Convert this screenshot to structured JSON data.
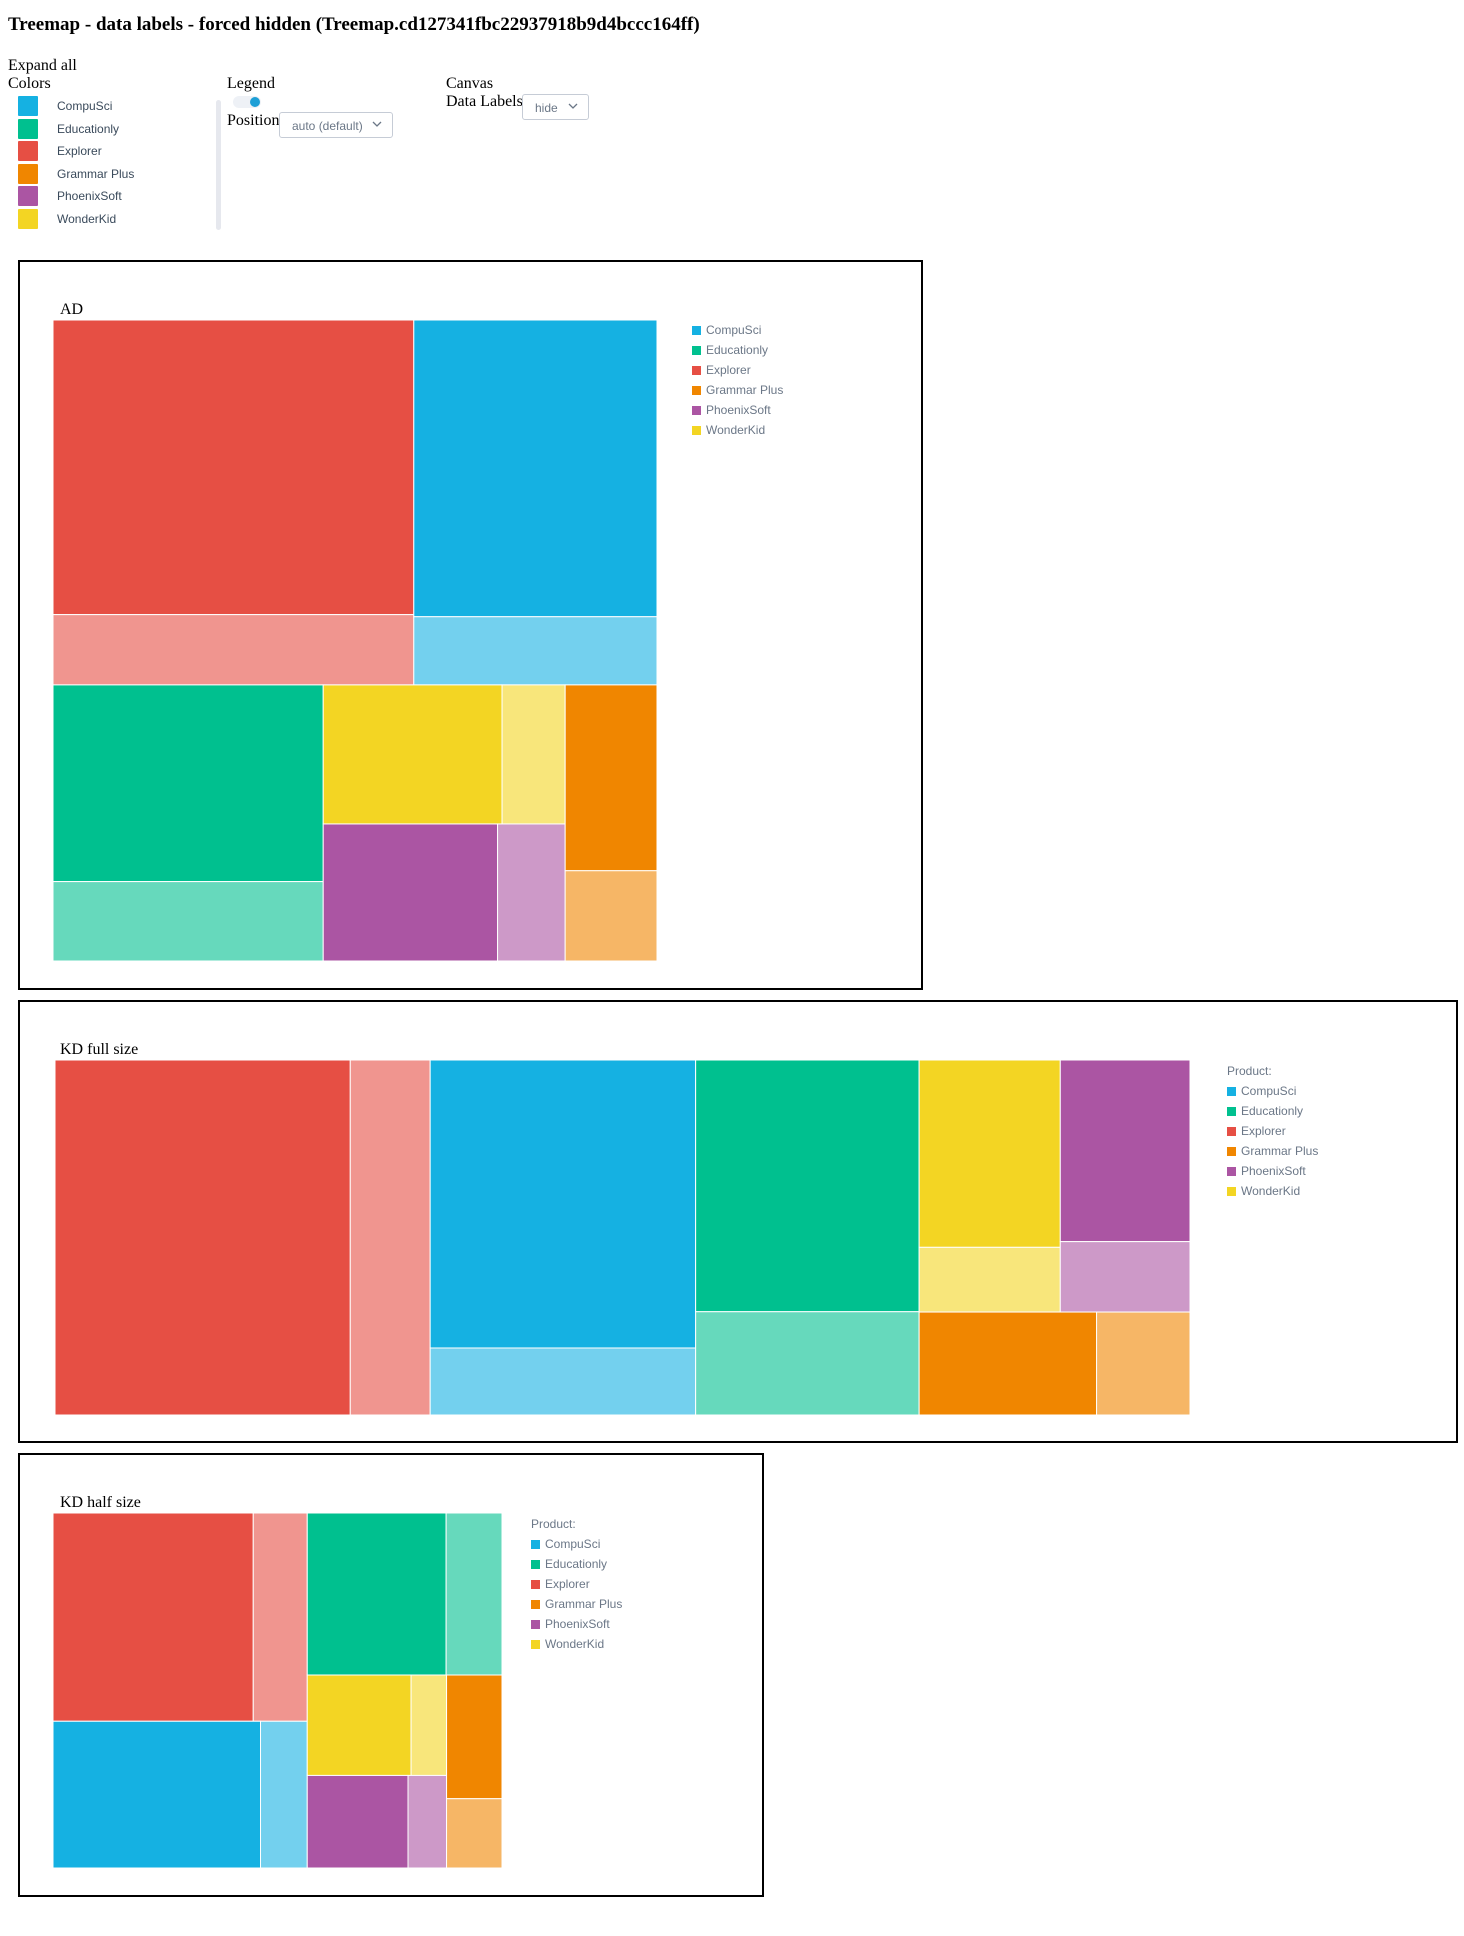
{
  "page": {
    "title": "Treemap - data labels - forced hidden (Treemap.cd127341fbc22937918b9d4bccc164ff)",
    "expand_all": "Expand all",
    "colors_heading": "Colors",
    "legend_heading": "Legend",
    "position_label": "Position",
    "position_value": "auto (default)",
    "canvas_heading": "Canvas",
    "data_labels_label": "Data Labels",
    "data_labels_value": "hide",
    "legend_toggle_on": true
  },
  "colors": [
    {
      "name": "CompuSci",
      "color": "#15b1e2"
    },
    {
      "name": "Educationly",
      "color": "#00c08f"
    },
    {
      "name": "Explorer",
      "color": "#e64f44"
    },
    {
      "name": "Grammar Plus",
      "color": "#f08600"
    },
    {
      "name": "PhoenixSoft",
      "color": "#ab55a3"
    },
    {
      "name": "WonderKid",
      "color": "#f3d523"
    }
  ],
  "chart_data": [
    {
      "type": "treemap",
      "title": "AD",
      "legend_title": "",
      "legend_position": "top-right",
      "data_labels": "hidden",
      "series": [
        {
          "name": "Explorer",
          "values": [
            21.8,
            5.2
          ]
        },
        {
          "name": "CompuSci",
          "values": [
            14.8,
            3.4
          ]
        },
        {
          "name": "Educationly",
          "values": [
            10.9,
            4.4
          ]
        },
        {
          "name": "WonderKid",
          "values": [
            5.1,
            1.8
          ]
        },
        {
          "name": "PhoenixSoft",
          "values": [
            4.9,
            1.9
          ]
        },
        {
          "name": "Grammar Plus",
          "values": [
            3.5,
            1.7
          ]
        }
      ]
    },
    {
      "type": "treemap",
      "title": "KD full size",
      "legend_title": "Product:",
      "legend_position": "top-right",
      "data_labels": "hidden",
      "series": [
        {
          "name": "Explorer",
          "values": [
            21.8,
            5.9
          ]
        },
        {
          "name": "CompuSci",
          "values": [
            15.9,
            3.7
          ]
        },
        {
          "name": "Educationly",
          "values": [
            11.7,
            4.8
          ]
        },
        {
          "name": "WonderKid",
          "values": [
            5.5,
            1.9
          ]
        },
        {
          "name": "PhoenixSoft",
          "values": [
            4.9,
            1.9
          ]
        },
        {
          "name": "Grammar Plus",
          "values": [
            3.8,
            2.0
          ]
        }
      ]
    },
    {
      "type": "treemap",
      "title": "KD half size",
      "legend_title": "Product:",
      "legend_position": "top-right",
      "data_labels": "hidden",
      "series": [
        {
          "name": "Explorer",
          "values": [
            15.2,
            4.1
          ]
        },
        {
          "name": "CompuSci",
          "values": [
            11.1,
            2.5
          ]
        },
        {
          "name": "Educationly",
          "values": [
            8.2,
            3.3
          ]
        },
        {
          "name": "WonderKid",
          "values": [
            3.8,
            1.3
          ]
        },
        {
          "name": "PhoenixSoft",
          "values": [
            3.4,
            1.3
          ]
        },
        {
          "name": "Grammar Plus",
          "values": [
            2.5,
            1.4
          ]
        }
      ]
    }
  ]
}
